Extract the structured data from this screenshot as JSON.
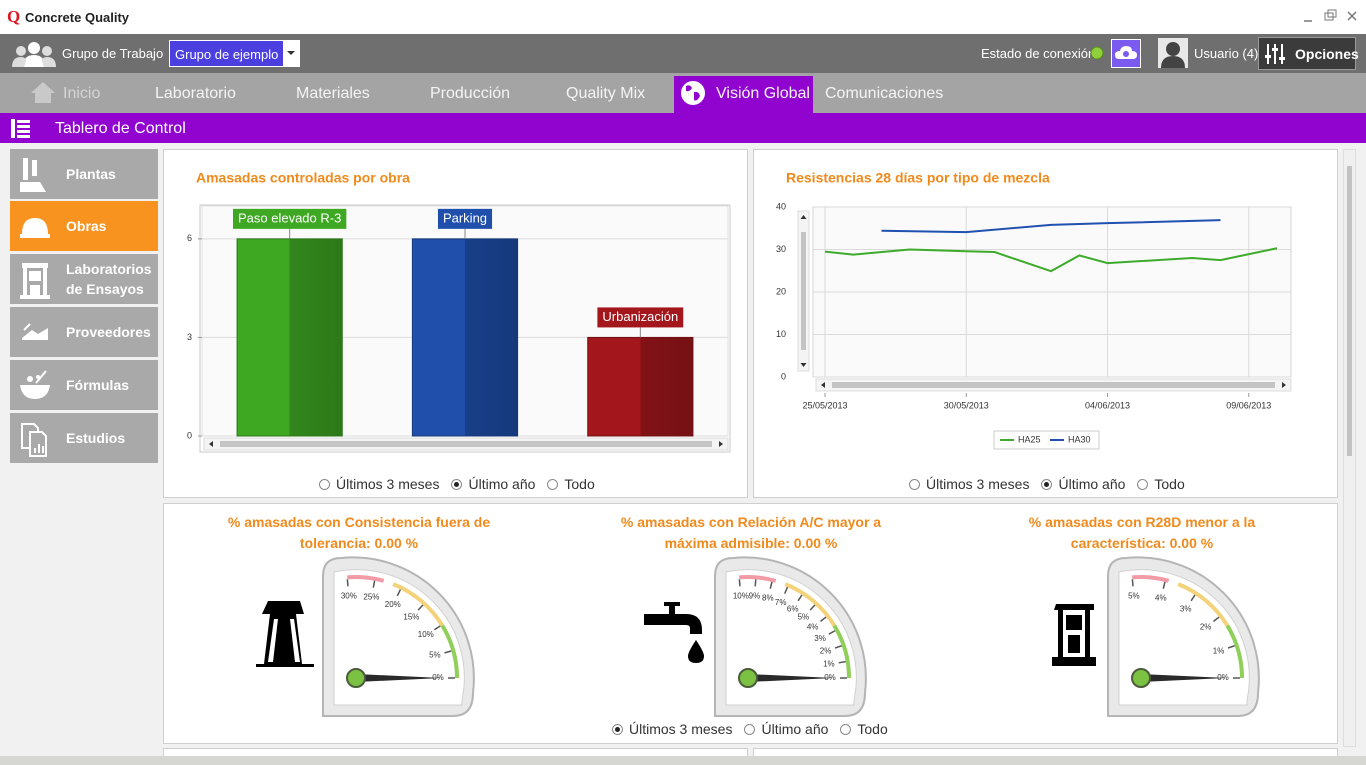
{
  "header": {
    "logo": "Q",
    "app_title": "Concrete Quality"
  },
  "toolbar": {
    "group_label": "Grupo de Trabajo",
    "group_value": "Grupo de ejemplo",
    "connection_label": "Estado de conexión",
    "user": "Usuario (4)",
    "options": "Opciones"
  },
  "nav": {
    "tabs": [
      "Inicio",
      "Laboratorio",
      "Materiales",
      "Producción",
      "Quality Mix",
      "Visión Global",
      "Comunicaciones"
    ],
    "active": 5
  },
  "section_title": "Tablero de Control",
  "sidebar": {
    "items": [
      "Plantas",
      "Obras",
      "Laboratorios de Ensayos",
      "Proveedores",
      "Fórmulas",
      "Estudios"
    ],
    "active": 1
  },
  "chart_data": [
    {
      "type": "bar",
      "title": "Amasadas controladas por obra",
      "categories": [
        "Paso elevado R-3",
        "Parking",
        "Urbanización"
      ],
      "values": [
        6,
        6,
        3
      ],
      "colors": [
        "#3ea823",
        "#1f4fab",
        "#a3171c"
      ],
      "ylim": [
        0,
        7
      ],
      "yticks": [
        0,
        3,
        6
      ],
      "grid": true,
      "range_options": [
        "Últimos 3 meses",
        "Último año",
        "Todo"
      ],
      "range_selected": 1
    },
    {
      "type": "line",
      "title": "Resistencias 28 días por tipo de mezcla",
      "series": [
        {
          "name": "HA25",
          "color": "#3cab2a",
          "x": [
            "25/05/2013",
            "26/05/2013",
            "28/05/2013",
            "30/05/2013",
            "31/05/2013",
            "02/06/2013",
            "03/06/2013",
            "04/06/2013",
            "07/06/2013",
            "08/06/2013",
            "10/06/2013"
          ],
          "values": [
            29.5,
            28.8,
            30,
            29.6,
            29.4,
            24.9,
            28.6,
            26.8,
            28,
            27.5,
            30.3
          ]
        },
        {
          "name": "HA30",
          "color": "#2050b0",
          "x": [
            "27/05/2013",
            "30/05/2013",
            "02/06/2013",
            "04/06/2013",
            "08/06/2013"
          ],
          "values": [
            34.4,
            34.1,
            35.8,
            36.2,
            36.9
          ]
        }
      ],
      "xlim": [
        "25/05/2013",
        "10/06/2013"
      ],
      "xticks": [
        "25/05/2013",
        "30/05/2013",
        "04/06/2013",
        "09/06/2013"
      ],
      "ylim": [
        0,
        40
      ],
      "yticks": [
        0,
        10,
        20,
        30,
        40
      ],
      "grid": true,
      "legend": "bottom",
      "range_options": [
        "Últimos 3 meses",
        "Último año",
        "Todo"
      ],
      "range_selected": 1
    },
    {
      "type": "gauge",
      "title": "% amasadas con Consistencia fuera de tolerancia: 0.00 %",
      "value": 0,
      "ylim": [
        0,
        30
      ],
      "yticks": [
        {
          "value": 0,
          "label": "0%"
        },
        {
          "value": 5,
          "label": "5%"
        },
        {
          "value": 10,
          "label": "10%"
        },
        {
          "value": 15,
          "label": "15%"
        },
        {
          "value": 20,
          "label": "20%"
        },
        {
          "value": 25,
          "label": "25%"
        },
        {
          "value": 30,
          "label": "30%"
        }
      ]
    },
    {
      "type": "gauge",
      "title": "% amasadas con Relación A/C mayor a máxima admisible: 0.00 %",
      "value": 0,
      "ylim": [
        0,
        10
      ],
      "yticks": [
        {
          "value": 0,
          "label": "0%"
        },
        {
          "value": 1,
          "label": "1%"
        },
        {
          "value": 2,
          "label": "2%"
        },
        {
          "value": 3,
          "label": "3%"
        },
        {
          "value": 4,
          "label": "4%"
        },
        {
          "value": 5,
          "label": "5%"
        },
        {
          "value": 6,
          "label": "6%"
        },
        {
          "value": 7,
          "label": "7%"
        },
        {
          "value": 8,
          "label": "8%"
        },
        {
          "value": 9,
          "label": "9%"
        },
        {
          "value": 10,
          "label": "10%"
        }
      ]
    },
    {
      "type": "gauge",
      "title": "% amasadas con R28D menor a la característica: 0.00 %",
      "value": 0,
      "ylim": [
        0,
        5
      ],
      "yticks": [
        {
          "value": 0,
          "label": "0%"
        },
        {
          "value": 1,
          "label": "1%"
        },
        {
          "value": 2,
          "label": "2%"
        },
        {
          "value": 3,
          "label": "3%"
        },
        {
          "value": 4,
          "label": "4%"
        },
        {
          "value": 5,
          "label": "5%"
        }
      ]
    }
  ],
  "gauge_range": {
    "options": [
      "Últimos 3 meses",
      "Último año",
      "Todo"
    ],
    "selected": 0
  }
}
